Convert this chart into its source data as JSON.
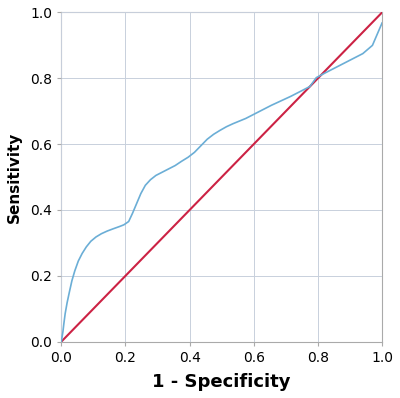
{
  "title": "",
  "xlabel": "1 - Specificity",
  "ylabel": "Sensitivity",
  "xlim": [
    0.0,
    1.0
  ],
  "ylim": [
    0.0,
    1.0
  ],
  "xticks": [
    0.0,
    0.2,
    0.4,
    0.6,
    0.8,
    1.0
  ],
  "yticks": [
    0.0,
    0.2,
    0.4,
    0.6,
    0.8,
    1.0
  ],
  "roc_color": "#6baed6",
  "diag_color": "#cc2244",
  "roc_linewidth": 1.2,
  "diag_linewidth": 1.5,
  "background_color": "#ffffff",
  "grid_color": "#c8d0dc",
  "roc_x": [
    0.0,
    0.002,
    0.005,
    0.008,
    0.012,
    0.018,
    0.025,
    0.033,
    0.042,
    0.053,
    0.065,
    0.078,
    0.092,
    0.108,
    0.125,
    0.143,
    0.162,
    0.182,
    0.195,
    0.21,
    0.222,
    0.235,
    0.248,
    0.262,
    0.278,
    0.295,
    0.315,
    0.335,
    0.355,
    0.375,
    0.395,
    0.415,
    0.435,
    0.455,
    0.475,
    0.495,
    0.515,
    0.535,
    0.555,
    0.575,
    0.595,
    0.615,
    0.635,
    0.655,
    0.675,
    0.695,
    0.715,
    0.735,
    0.755,
    0.775,
    0.795,
    0.82,
    0.85,
    0.88,
    0.91,
    0.94,
    0.97,
    1.0
  ],
  "roc_y": [
    0.0,
    0.012,
    0.03,
    0.055,
    0.085,
    0.118,
    0.15,
    0.185,
    0.215,
    0.245,
    0.268,
    0.288,
    0.305,
    0.318,
    0.328,
    0.336,
    0.343,
    0.35,
    0.355,
    0.365,
    0.39,
    0.42,
    0.45,
    0.475,
    0.492,
    0.505,
    0.515,
    0.525,
    0.535,
    0.548,
    0.56,
    0.575,
    0.595,
    0.615,
    0.63,
    0.642,
    0.653,
    0.662,
    0.67,
    0.678,
    0.688,
    0.698,
    0.708,
    0.718,
    0.727,
    0.736,
    0.745,
    0.755,
    0.765,
    0.775,
    0.802,
    0.815,
    0.83,
    0.845,
    0.86,
    0.875,
    0.9,
    0.968
  ],
  "xlabel_fontsize": 13,
  "ylabel_fontsize": 11,
  "tick_fontsize": 10,
  "figsize": [
    4.0,
    3.98
  ],
  "dpi": 100
}
